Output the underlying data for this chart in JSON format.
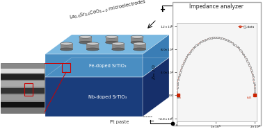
{
  "label_fe": "Fe-doped SrTiO₃",
  "label_nb": "Nb-doped SrTiO₃",
  "label_pt": "Pt paste",
  "label_lscof": "La$_{0.6}$Sr$_{0.4}$CoO$_{3-\\delta}$ microelectrodes",
  "label_plus": "+",
  "label_minus": "−",
  "label_impedance": "Impedance analyzer",
  "fe_front_color": "#4a8ec2",
  "fe_top_color": "#7ab8e0",
  "fe_side_color": "#3a7db5",
  "nb_front_color": "#1a3d7c",
  "nb_top_color": "#2456a4",
  "nb_side_color": "#162f6a",
  "electrode_top_color": "#aaaaaa",
  "electrode_body_color": "#888888",
  "electrode_bottom_color": "#666666",
  "wire_color": "#222222",
  "red_box_color": "#cc0000",
  "imp_bg": "#f8f8f8",
  "imp_border": "#aaaaaa",
  "omega_color": "#cc0000",
  "point_outer_color": "#888888",
  "note_color": "#333333"
}
